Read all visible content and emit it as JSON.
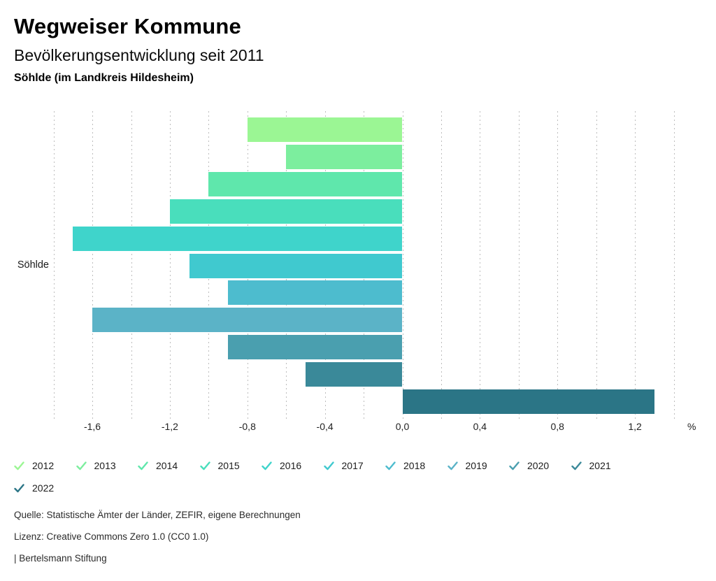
{
  "header": {
    "title": "Wegweiser Kommune",
    "subtitle": "Bevölkerungsentwicklung seit 2011",
    "region": "Söhlde (im Landkreis Hildesheim)"
  },
  "chart_data": {
    "type": "bar",
    "orientation": "horizontal",
    "title": "Bevölkerungsentwicklung seit 2011",
    "category": "Söhlde",
    "unit": "%",
    "grid": true,
    "legend_position": "bottom",
    "xlim": [
      -1.8,
      1.4
    ],
    "grid_step": 0.2,
    "ticks": [
      {
        "value": -1.6,
        "label": "-1,6"
      },
      {
        "value": -1.2,
        "label": "-1,2"
      },
      {
        "value": -0.8,
        "label": "-0,8"
      },
      {
        "value": -0.4,
        "label": "-0,4"
      },
      {
        "value": 0.0,
        "label": "0,0"
      },
      {
        "value": 0.4,
        "label": "0,4"
      },
      {
        "value": 0.8,
        "label": "0,8"
      },
      {
        "value": 1.2,
        "label": "1,2"
      }
    ],
    "axis_unit_label": "%",
    "series": [
      {
        "name": "2012",
        "value": -0.8,
        "color": "#9BF694"
      },
      {
        "name": "2013",
        "value": -0.6,
        "color": "#7CEE9E"
      },
      {
        "name": "2014",
        "value": -1.0,
        "color": "#5FE7AC"
      },
      {
        "name": "2015",
        "value": -1.2,
        "color": "#49DEBC"
      },
      {
        "name": "2016",
        "value": -1.7,
        "color": "#3FD4CB"
      },
      {
        "name": "2017",
        "value": -1.1,
        "color": "#40C9CF"
      },
      {
        "name": "2018",
        "value": -0.9,
        "color": "#4DBCCE"
      },
      {
        "name": "2019",
        "value": -1.6,
        "color": "#5BB3C7"
      },
      {
        "name": "2020",
        "value": -0.9,
        "color": "#4A9FAF"
      },
      {
        "name": "2021",
        "value": -0.5,
        "color": "#3A8999"
      },
      {
        "name": "2022",
        "value": 1.3,
        "color": "#2B7586"
      }
    ]
  },
  "footer": {
    "source": "Quelle: Statistische Ämter der Länder, ZEFIR, eigene Berechnungen",
    "license": "Lizenz: Creative Commons Zero 1.0 (CC0 1.0)",
    "attribution": "| Bertelsmann Stiftung"
  }
}
